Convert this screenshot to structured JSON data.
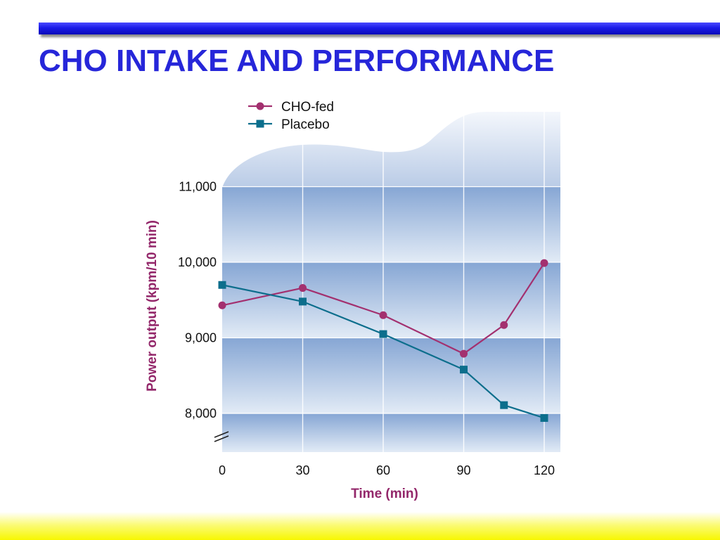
{
  "slide": {
    "title": "CHO INTAKE AND PERFORMANCE",
    "accent_color": "#2626d9",
    "bottom_band_color": "#f7f700"
  },
  "chart_data": {
    "type": "line",
    "title": "",
    "xlabel": "Time (min)",
    "ylabel": "Power output (kpm/10 min)",
    "x_ticks": [
      "0",
      "30",
      "60",
      "90",
      "120"
    ],
    "y_ticks": [
      "8,000",
      "9,000",
      "10,000",
      "11,000"
    ],
    "xlim": [
      0,
      120
    ],
    "ylim": [
      7500,
      11000
    ],
    "y_axis_break": true,
    "grid": true,
    "legend_position": "top-left",
    "series": [
      {
        "name": "CHO-fed",
        "marker": "circle",
        "color": "#a3306f",
        "x": [
          0,
          30,
          60,
          90,
          105,
          120
        ],
        "values": [
          9430,
          9660,
          9300,
          8790,
          9170,
          9990
        ]
      },
      {
        "name": "Placebo",
        "marker": "square",
        "color": "#0c6e8c",
        "x": [
          0,
          30,
          60,
          90,
          105,
          120
        ],
        "values": [
          9700,
          9480,
          9050,
          8580,
          8110,
          7940
        ]
      }
    ]
  }
}
